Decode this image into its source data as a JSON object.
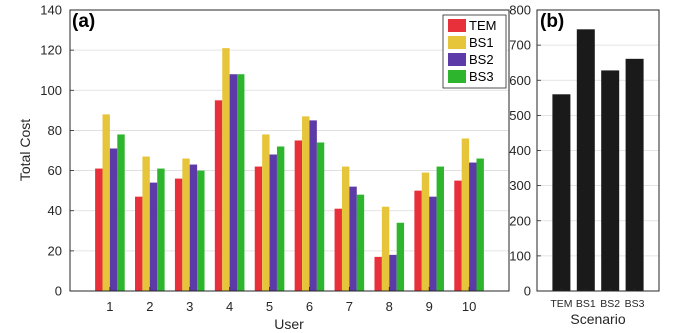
{
  "chart_data": [
    {
      "type": "bar",
      "panel_label": "(a)",
      "categories": [
        "1",
        "2",
        "3",
        "4",
        "5",
        "6",
        "7",
        "8",
        "9",
        "10"
      ],
      "series": [
        {
          "name": "TEM",
          "color": "#e8303a",
          "values": [
            61,
            47,
            56,
            95,
            62,
            75,
            41,
            17,
            50,
            55
          ]
        },
        {
          "name": "BS1",
          "color": "#e6c53a",
          "values": [
            88,
            67,
            66,
            121,
            78,
            87,
            62,
            42,
            59,
            76
          ]
        },
        {
          "name": "BS2",
          "color": "#5c3aa8",
          "values": [
            71,
            54,
            63,
            108,
            68,
            85,
            52,
            18,
            47,
            64
          ]
        },
        {
          "name": "BS3",
          "color": "#2eb52e",
          "values": [
            78,
            61,
            60,
            108,
            72,
            74,
            48,
            34,
            62,
            66
          ]
        }
      ],
      "xlabel": "User",
      "ylabel": "Total Cost",
      "ylim": [
        0,
        140
      ],
      "yticks": [
        "0",
        "20",
        "40",
        "60",
        "80",
        "100",
        "120",
        "140"
      ],
      "grid": true,
      "legend": "top-right"
    },
    {
      "type": "bar",
      "panel_label": "(b)",
      "categories": [
        "TEM",
        "BS1",
        "BS2",
        "BS3"
      ],
      "values": [
        560,
        745,
        628,
        661
      ],
      "color": "#1a1a1a",
      "xlabel": "Scenario",
      "ylabel": "",
      "ylim": [
        0,
        800
      ],
      "yticks": [
        "0",
        "100",
        "200",
        "300",
        "400",
        "500",
        "600",
        "700",
        "800"
      ],
      "grid": true
    }
  ]
}
